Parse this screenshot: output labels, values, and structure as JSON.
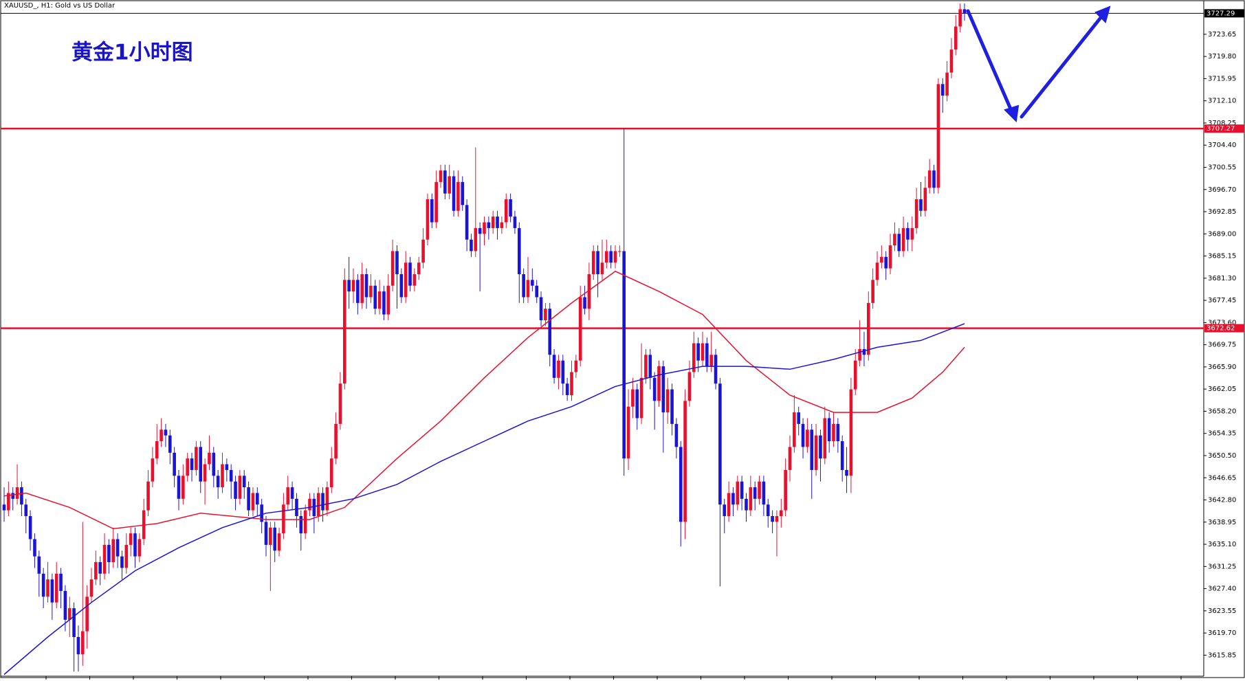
{
  "chart_data": {
    "type": "candlestick",
    "title": "XAUUSD_, H1: Gold vs US Dollar",
    "annotation": "黄金1小时图",
    "up_color": "#e8112d",
    "down_color": "#1a14d8",
    "ylim": [
      3612.2,
      3729.6
    ],
    "yticks": [
      3723.65,
      {
        "value": 3719.8,
        "label": "3719.80"
      },
      3715.95,
      {
        "value": 3712.1,
        "label": "3712.10"
      },
      3708.25,
      {
        "value": 3704.4,
        "label": "3704.40"
      },
      3700.55,
      {
        "value": 3696.7,
        "label": "3696.70"
      },
      3692.85,
      {
        "value": 3689,
        "label": "3689.00"
      },
      3685.15,
      {
        "value": 3681.3,
        "label": "3681.30"
      },
      3677.45,
      {
        "value": 3673.6,
        "label": "3673.60"
      },
      3669.75,
      {
        "value": 3665.9,
        "label": "3665.90"
      },
      3662.05,
      {
        "value": 3658.2,
        "label": "3658.20"
      },
      3654.35,
      {
        "value": 3650.5,
        "label": "3650.50"
      },
      3646.65,
      {
        "value": 3642.8,
        "label": "3642.80"
      },
      3638.95,
      {
        "value": 3635.1,
        "label": "3635.10"
      },
      3631.25,
      {
        "value": 3627.4,
        "label": "3627.40"
      },
      3623.55,
      {
        "value": 3619.7,
        "label": "3619.70"
      },
      3615.85
    ],
    "candles": [
      [
        3642,
        3645,
        3639,
        3641
      ],
      [
        3641,
        3646,
        3640,
        3644
      ],
      [
        3644,
        3645,
        3641,
        3643
      ],
      [
        3643,
        3649,
        3642,
        3645
      ],
      [
        3645,
        3646,
        3640,
        3642
      ],
      [
        3642,
        3643,
        3637,
        3640
      ],
      [
        3640,
        3641,
        3634,
        3636
      ],
      [
        3636,
        3637,
        3631,
        3633
      ],
      [
        3633,
        3634,
        3626,
        3630
      ],
      [
        3630,
        3631,
        3624,
        3626
      ],
      [
        3626,
        3632,
        3625,
        3629
      ],
      [
        3629,
        3630,
        3622,
        3625
      ],
      [
        3625,
        3632,
        3624,
        3630
      ],
      [
        3630,
        3631,
        3624,
        3627
      ],
      [
        3627,
        3628,
        3620,
        3622
      ],
      [
        3622,
        3626,
        3619,
        3624
      ],
      [
        3624,
        3625,
        3613,
        3619
      ],
      [
        3619,
        3621,
        3613,
        3616
      ],
      [
        3616,
        3639,
        3614,
        3620
      ],
      [
        3620,
        3628,
        3617,
        3626
      ],
      [
        3626,
        3631,
        3625,
        3629
      ],
      [
        3629,
        3634,
        3628,
        3632
      ],
      [
        3632,
        3633,
        3628,
        3630
      ],
      [
        3630,
        3637,
        3629,
        3635
      ],
      [
        3635,
        3636,
        3630,
        3632
      ],
      [
        3632,
        3638,
        3631,
        3636
      ],
      [
        3636,
        3637,
        3631,
        3633
      ],
      [
        3633,
        3634,
        3629,
        3631
      ],
      [
        3631,
        3637,
        3630,
        3635
      ],
      [
        3635,
        3638,
        3633,
        3637
      ],
      [
        3637,
        3638,
        3631,
        3633
      ],
      [
        3633,
        3637,
        3632,
        3636
      ],
      [
        3636,
        3643,
        3635,
        3641
      ],
      [
        3641,
        3648,
        3640,
        3646
      ],
      [
        3646,
        3652,
        3645,
        3650
      ],
      [
        3650,
        3656,
        3649,
        3653
      ],
      [
        3653,
        3657,
        3652,
        3655
      ],
      [
        3655,
        3656,
        3652,
        3654
      ],
      [
        3654,
        3655,
        3649,
        3651
      ],
      [
        3651,
        3652,
        3645,
        3647
      ],
      [
        3647,
        3648,
        3641,
        3643
      ],
      [
        3643,
        3649,
        3642,
        3647
      ],
      [
        3647,
        3651,
        3646,
        3650
      ],
      [
        3650,
        3651,
        3646,
        3648
      ],
      [
        3648,
        3653,
        3647,
        3652
      ],
      [
        3652,
        3653,
        3644,
        3646
      ],
      [
        3646,
        3650,
        3642,
        3649
      ],
      [
        3649,
        3654,
        3648,
        3651
      ],
      [
        3651,
        3652,
        3645,
        3647
      ],
      [
        3647,
        3648,
        3643,
        3645
      ],
      [
        3645,
        3651,
        3644,
        3649
      ],
      [
        3649,
        3650,
        3646,
        3648
      ],
      [
        3648,
        3649,
        3643,
        3646
      ],
      [
        3646,
        3647,
        3641,
        3643
      ],
      [
        3643,
        3648,
        3642,
        3647
      ],
      [
        3647,
        3648,
        3643,
        3645
      ],
      [
        3645,
        3646,
        3640,
        3641
      ],
      [
        3641,
        3645,
        3640,
        3644
      ],
      [
        3644,
        3645,
        3640,
        3642
      ],
      [
        3642,
        3643,
        3637,
        3639
      ],
      [
        3639,
        3640,
        3633,
        3635
      ],
      [
        3635,
        3639,
        3627,
        3638
      ],
      [
        3638,
        3639,
        3632,
        3634
      ],
      [
        3634,
        3638,
        3633,
        3637
      ],
      [
        3637,
        3644,
        3636,
        3642
      ],
      [
        3642,
        3647,
        3641,
        3645
      ],
      [
        3645,
        3646,
        3641,
        3643
      ],
      [
        3643,
        3644,
        3638,
        3640
      ],
      [
        3640,
        3641,
        3634,
        3637
      ],
      [
        3637,
        3642,
        3636,
        3641
      ],
      [
        3641,
        3644,
        3640,
        3643
      ],
      [
        3643,
        3644,
        3637,
        3640
      ],
      [
        3640,
        3645,
        3639,
        3644
      ],
      [
        3644,
        3645,
        3639,
        3641
      ],
      [
        3641,
        3646,
        3640,
        3645
      ],
      [
        3645,
        3652,
        3644,
        3650
      ],
      [
        3650,
        3658,
        3649,
        3656
      ],
      [
        3656,
        3665,
        3655,
        3663
      ],
      [
        3663,
        3683,
        3662,
        3681
      ],
      [
        3681,
        3685,
        3676,
        3679
      ],
      [
        3679,
        3683,
        3677,
        3681
      ],
      [
        3681,
        3682,
        3675,
        3677
      ],
      [
        3677,
        3684,
        3676,
        3682
      ],
      [
        3682,
        3683,
        3676,
        3678
      ],
      [
        3678,
        3682,
        3677,
        3680
      ],
      [
        3680,
        3681,
        3675,
        3676
      ],
      [
        3676,
        3681,
        3675,
        3679
      ],
      [
        3679,
        3680,
        3674,
        3675
      ],
      [
        3675,
        3682,
        3674,
        3680
      ],
      [
        3680,
        3688,
        3679,
        3686
      ],
      [
        3686,
        3687,
        3676,
        3682
      ],
      [
        3682,
        3683,
        3677,
        3678
      ],
      [
        3678,
        3686,
        3677,
        3684
      ],
      [
        3684,
        3685,
        3679,
        3680
      ],
      [
        3680,
        3683,
        3679,
        3682
      ],
      [
        3682,
        3685,
        3681,
        3684
      ],
      [
        3684,
        3690,
        3683,
        3688
      ],
      [
        3688,
        3696,
        3687,
        3695
      ],
      [
        3695,
        3696,
        3690,
        3691
      ],
      [
        3691,
        3700,
        3690,
        3698
      ],
      [
        3698,
        3701,
        3697,
        3700
      ],
      [
        3700,
        3701,
        3695,
        3696
      ],
      [
        3696,
        3701,
        3695,
        3699
      ],
      [
        3699,
        3700,
        3692,
        3693
      ],
      [
        3693,
        3700,
        3692,
        3698
      ],
      [
        3698,
        3699,
        3693,
        3694
      ],
      [
        3694,
        3695,
        3686,
        3688
      ],
      [
        3688,
        3689,
        3685,
        3686
      ],
      [
        3686,
        3704,
        3685,
        3690
      ],
      [
        3690,
        3691,
        3679,
        3689
      ],
      [
        3689,
        3692,
        3687,
        3691
      ],
      [
        3691,
        3692,
        3688,
        3690
      ],
      [
        3690,
        3693,
        3689,
        3692
      ],
      [
        3692,
        3693,
        3688,
        3690
      ],
      [
        3690,
        3692,
        3689,
        3691
      ],
      [
        3691,
        3696,
        3690,
        3695
      ],
      [
        3695,
        3696,
        3691,
        3692
      ],
      [
        3692,
        3693,
        3689,
        3690
      ],
      [
        3690,
        3691,
        3677,
        3682
      ],
      [
        3682,
        3683,
        3677,
        3678
      ],
      [
        3678,
        3685,
        3677,
        3681
      ],
      [
        3681,
        3683,
        3679,
        3680
      ],
      [
        3680,
        3681,
        3677,
        3678
      ],
      [
        3678,
        3679,
        3673,
        3674
      ],
      [
        3674,
        3677,
        3673,
        3676
      ],
      [
        3676,
        3677,
        3666,
        3668
      ],
      [
        3668,
        3669,
        3663,
        3664
      ],
      [
        3664,
        3668,
        3662,
        3667
      ],
      [
        3667,
        3668,
        3661,
        3663
      ],
      [
        3663,
        3664,
        3660,
        3661
      ],
      [
        3661,
        3667,
        3660,
        3665
      ],
      [
        3665,
        3668,
        3664,
        3667
      ],
      [
        3667,
        3680,
        3666,
        3678
      ],
      [
        3678,
        3680,
        3675,
        3676
      ],
      [
        3676,
        3684,
        3674,
        3682
      ],
      [
        3682,
        3687,
        3681,
        3686
      ],
      [
        3686,
        3687,
        3678,
        3682
      ],
      [
        3682,
        3688,
        3681,
        3684
      ],
      [
        3684,
        3688,
        3683,
        3686
      ],
      [
        3686,
        3687,
        3683,
        3684
      ],
      [
        3684,
        3687,
        3683,
        3686
      ],
      [
        3686,
        3687,
        3685,
        3686
      ],
      [
        3686,
        3707.3,
        3647,
        3650
      ],
      [
        3650,
        3662,
        3648,
        3659
      ],
      [
        3659,
        3664,
        3657,
        3662
      ],
      [
        3662,
        3663,
        3655,
        3657
      ],
      [
        3657,
        3670,
        3656,
        3664
      ],
      [
        3664,
        3669,
        3663,
        3668
      ],
      [
        3668,
        3669,
        3662,
        3664
      ],
      [
        3664,
        3665,
        3655,
        3660
      ],
      [
        3660,
        3667,
        3659,
        3666
      ],
      [
        3666,
        3667,
        3651,
        3658
      ],
      [
        3658,
        3664,
        3656,
        3662
      ],
      [
        3662,
        3663,
        3654,
        3656
      ],
      [
        3656,
        3657,
        3650,
        3652
      ],
      [
        3652,
        3653,
        3634.7,
        3639
      ],
      [
        3639,
        3662,
        3636,
        3660
      ],
      [
        3660,
        3667,
        3659,
        3665
      ],
      [
        3665,
        3672,
        3664,
        3670
      ],
      [
        3670,
        3671,
        3665,
        3667
      ],
      [
        3667,
        3672,
        3666,
        3670
      ],
      [
        3670,
        3671,
        3665,
        3666
      ],
      [
        3666,
        3672,
        3665,
        3668
      ],
      [
        3668,
        3669,
        3662,
        3663
      ],
      [
        3663,
        3664,
        3627.8,
        3642
      ],
      [
        3642,
        3643,
        3637,
        3640
      ],
      [
        3640,
        3646,
        3639,
        3644
      ],
      [
        3644,
        3645,
        3640,
        3642
      ],
      [
        3642,
        3647,
        3641,
        3646
      ],
      [
        3646,
        3647,
        3641,
        3643
      ],
      [
        3643,
        3644,
        3639,
        3641
      ],
      [
        3641,
        3647,
        3640,
        3645
      ],
      [
        3645,
        3646,
        3641,
        3643
      ],
      [
        3643,
        3647,
        3642,
        3646
      ],
      [
        3646,
        3647,
        3640,
        3642
      ],
      [
        3642,
        3643,
        3638,
        3640
      ],
      [
        3640,
        3641,
        3637,
        3639
      ],
      [
        3639,
        3641,
        3633,
        3640
      ],
      [
        3640,
        3643,
        3638,
        3641
      ],
      [
        3641,
        3650,
        3640,
        3648
      ],
      [
        3648,
        3654,
        3646,
        3652
      ],
      [
        3652,
        3661,
        3651,
        3658
      ],
      [
        3658,
        3659,
        3654,
        3656
      ],
      [
        3656,
        3657,
        3650,
        3652
      ],
      [
        3652,
        3657,
        3651,
        3655
      ],
      [
        3655,
        3656,
        3643,
        3648
      ],
      [
        3648,
        3656,
        3647,
        3654
      ],
      [
        3654,
        3655,
        3646,
        3650
      ],
      [
        3650,
        3659,
        3649,
        3657
      ],
      [
        3657,
        3658,
        3651,
        3653
      ],
      [
        3653,
        3658,
        3652,
        3656
      ],
      [
        3656,
        3657,
        3651,
        3653
      ],
      [
        3653,
        3654,
        3646,
        3648
      ],
      [
        3648,
        3652,
        3644,
        3647
      ],
      [
        3647,
        3664,
        3644,
        3662
      ],
      [
        3662,
        3669,
        3661,
        3667
      ],
      [
        3667,
        3674,
        3666,
        3669
      ],
      [
        3669,
        3672,
        3666,
        3668
      ],
      [
        3668,
        3679,
        3667,
        3677
      ],
      [
        3677,
        3683,
        3676,
        3681
      ],
      [
        3681,
        3686,
        3680,
        3684
      ],
      [
        3684,
        3687,
        3683,
        3685
      ],
      [
        3685,
        3686,
        3681,
        3683
      ],
      [
        3683,
        3689,
        3682,
        3687
      ],
      [
        3687,
        3691,
        3686,
        3689
      ],
      [
        3689,
        3690,
        3685,
        3686
      ],
      [
        3686,
        3692,
        3685,
        3690
      ],
      [
        3690,
        3691,
        3686,
        3688
      ],
      [
        3688,
        3692,
        3686,
        3690
      ],
      [
        3690,
        3697,
        3689,
        3695
      ],
      [
        3695,
        3698,
        3692,
        3693
      ],
      [
        3693,
        3699,
        3692,
        3697
      ],
      [
        3697,
        3702,
        3696,
        3700
      ],
      [
        3700,
        3701,
        3696,
        3697
      ],
      [
        3697,
        3716,
        3696,
        3715
      ],
      [
        3715,
        3716,
        3710,
        3713
      ],
      [
        3713,
        3719,
        3712,
        3717
      ],
      [
        3717,
        3723,
        3716,
        3721
      ],
      [
        3721,
        3727,
        3720,
        3725
      ],
      [
        3725,
        3729,
        3724,
        3728
      ],
      [
        3728,
        3729,
        3726,
        3727.3
      ]
    ],
    "lines": [
      {
        "color": "#e8112d",
        "x": [
          0,
          5,
          15,
          25,
          35,
          45,
          60,
          70,
          78,
          90,
          100,
          110,
          120,
          130,
          140,
          150,
          160,
          170,
          180,
          190,
          200,
          208,
          215,
          220
        ],
        "values": [
          3643.5,
          3644,
          3641.5,
          3637.8,
          3638.7,
          3640.5,
          3639.4,
          3639.4,
          3641.5,
          3650,
          3656.5,
          3664,
          3671,
          3677,
          3682.5,
          3679,
          3675,
          3667,
          3661,
          3658,
          3658,
          3660.5,
          3665,
          3669.3
        ]
      },
      {
        "color": "#1a14d8",
        "x": [
          0,
          10,
          20,
          30,
          40,
          50,
          60,
          70,
          80,
          90,
          100,
          110,
          120,
          130,
          140,
          150,
          160,
          170,
          180,
          190,
          200,
          210,
          220
        ],
        "values": [
          3612.5,
          3619,
          3625,
          3630.5,
          3634.5,
          3638,
          3640.5,
          3641.5,
          3643,
          3645.5,
          3649.5,
          3653,
          3656.5,
          3659,
          3662.5,
          3664.5,
          3666,
          3666,
          3665.5,
          3667.2,
          3669.3,
          3670.5,
          3673.4
        ]
      }
    ],
    "price_lines": [
      {
        "value": 3727.29,
        "color": "#000000"
      },
      {
        "value": 3707.27,
        "color": "#e8112d"
      },
      {
        "value": 3672.62,
        "color": "#e8112d"
      }
    ]
  }
}
